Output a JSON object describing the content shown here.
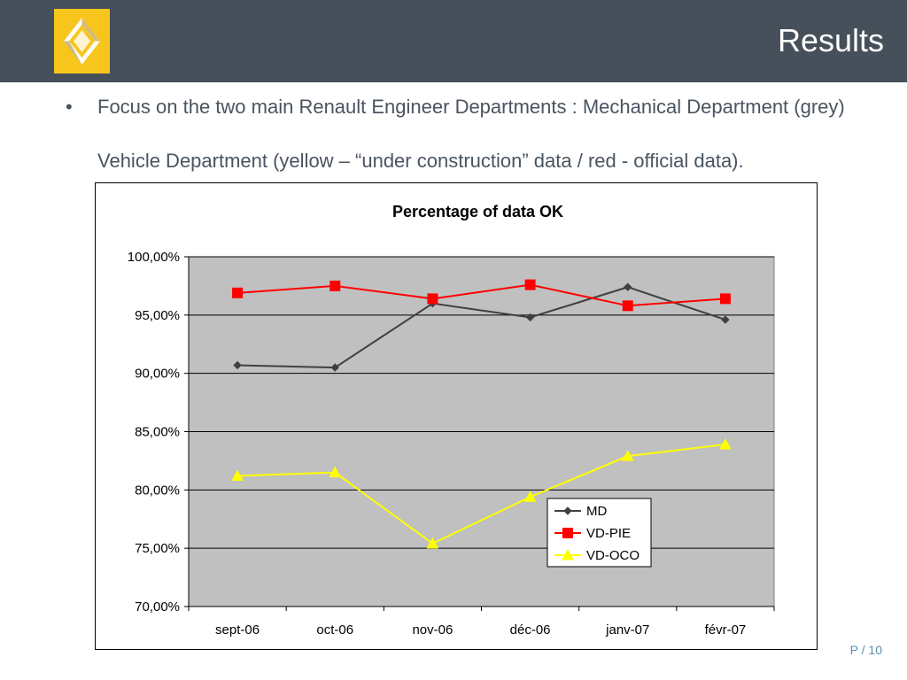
{
  "slide": {
    "title": "Results",
    "bullet": "•",
    "line1": "Focus on the two main Renault Engineer Departments : Mechanical Department (grey)",
    "line2": "Vehicle Department (yellow – “under construction” data / red - official data).",
    "page": "P / 10",
    "logo": "renault-diamond-icon"
  },
  "colors": {
    "header": "#46505a",
    "logo_bg": "#f7c51c",
    "plot_bg": "#c0c0c0",
    "md": "#404040",
    "vd_pie": "#ff0000",
    "vd_oco": "#ffff00"
  },
  "chart_data": {
    "type": "line",
    "title": "Percentage of data OK",
    "xlabel": "",
    "ylabel": "",
    "categories": [
      "sept-06",
      "oct-06",
      "nov-06",
      "déc-06",
      "janv-07",
      "févr-07"
    ],
    "ylim": [
      70,
      100
    ],
    "ytick_values": [
      70,
      75,
      80,
      85,
      90,
      95,
      100
    ],
    "ytick_labels": [
      "70,00%",
      "75,00%",
      "80,00%",
      "85,00%",
      "90,00%",
      "95,00%",
      "100,00%"
    ],
    "grid": true,
    "legend_position": "bottom-right inside plot",
    "series": [
      {
        "name": "MD",
        "marker": "diamond",
        "color": "#404040",
        "values": [
          90.7,
          90.5,
          96.0,
          94.8,
          97.4,
          94.6
        ]
      },
      {
        "name": "VD-PIE",
        "marker": "square",
        "color": "#ff0000",
        "values": [
          96.9,
          97.5,
          96.4,
          97.6,
          95.8,
          96.4
        ]
      },
      {
        "name": "VD-OCO",
        "marker": "triangle",
        "color": "#ffff00",
        "values": [
          81.2,
          81.5,
          75.4,
          79.4,
          82.9,
          83.9
        ]
      }
    ]
  }
}
